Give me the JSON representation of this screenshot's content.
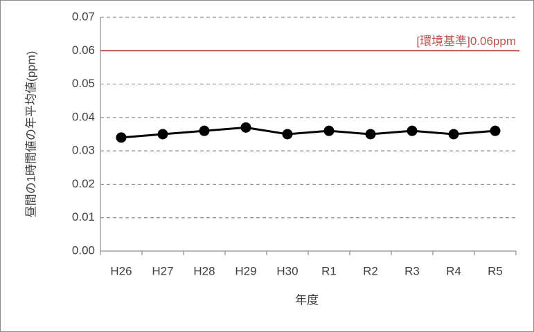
{
  "chart_data": {
    "type": "line",
    "categories": [
      "H26",
      "H27",
      "H28",
      "H29",
      "H30",
      "R1",
      "R2",
      "R3",
      "R4",
      "R5"
    ],
    "series": [
      {
        "color": "#000000",
        "values": [
          0.034,
          0.035,
          0.036,
          0.037,
          0.035,
          0.036,
          0.035,
          0.036,
          0.035,
          0.036
        ]
      }
    ],
    "ylim": [
      0,
      0.07
    ],
    "yticks": [
      {
        "value": 0,
        "label": "0.00"
      },
      0.01,
      0.02,
      0.03,
      0.04,
      0.05,
      0.06,
      0.07
    ],
    "grid": true,
    "x_label": "年度",
    "y_label": "昼間の1時間値の年平均値(ppm)",
    "reference_line": {
      "value": 0.06,
      "label": "[環境基準]0.06ppm",
      "color": "#c0504d"
    }
  }
}
